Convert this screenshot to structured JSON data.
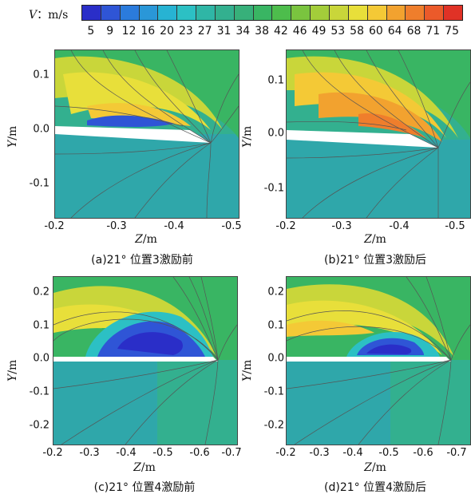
{
  "colorbar": {
    "title_var": "V",
    "title_unit": "：m/s",
    "ticks": [
      "5",
      "9",
      "12",
      "16",
      "20",
      "23",
      "27",
      "31",
      "34",
      "38",
      "42",
      "46",
      "49",
      "53",
      "58",
      "60",
      "64",
      "68",
      "71",
      "75"
    ],
    "colors": [
      "#2a2ec8",
      "#2f55d6",
      "#2b7bdc",
      "#2a97d8",
      "#27b3d3",
      "#2cc0c4",
      "#2fb6a6",
      "#33b08f",
      "#37b07a",
      "#39b563",
      "#4dbd4c",
      "#7ac43f",
      "#a3cd3a",
      "#c9d63a",
      "#e8df3a",
      "#f4c936",
      "#f2a22f",
      "#ef7e2c",
      "#eb5a2a",
      "#e03226"
    ]
  },
  "panels": [
    {
      "id": "a",
      "caption": "(a)21°  位置3激励前",
      "ylabel_var": "Y",
      "ylabel_unit": "/m",
      "xlabel_var": "Z",
      "xlabel_unit": "/m",
      "yticks": [
        "0.1",
        "0.0",
        "-0.1"
      ],
      "xticks": [
        "-0.2",
        "-0.3",
        "-0.4",
        "-0.5"
      ]
    },
    {
      "id": "b",
      "caption": "(b)21°  位置3激励后",
      "ylabel_var": "Y",
      "ylabel_unit": "/m",
      "xlabel_var": "Z",
      "xlabel_unit": "/m",
      "yticks": [
        "0.1",
        "0.0",
        "-0.1"
      ],
      "xticks": [
        "-0.2",
        "-0.3",
        "-0.4",
        "-0.5"
      ]
    },
    {
      "id": "c",
      "caption": "(c)21°  位置4激励前",
      "ylabel_var": "Y",
      "ylabel_unit": "/m",
      "xlabel_var": "Z",
      "xlabel_unit": "/m",
      "yticks": [
        "0.2",
        "0.1",
        "0.0",
        "-0.1",
        "-0.2"
      ],
      "xticks": [
        "-0.2",
        "-0.3",
        "-0.4",
        "-0.5",
        "-0.6",
        "-0.7"
      ]
    },
    {
      "id": "d",
      "caption": "(d)21°  位置4激励后",
      "ylabel_var": "Y",
      "ylabel_unit": "/m",
      "xlabel_var": "Z",
      "xlabel_unit": "/m",
      "yticks": [
        "0.2",
        "0.1",
        "0.0",
        "-0.1",
        "-0.2"
      ],
      "xticks": [
        "-0.2",
        "-0.3",
        "-0.4",
        "-0.5",
        "-0.6",
        "-0.7"
      ]
    }
  ]
}
